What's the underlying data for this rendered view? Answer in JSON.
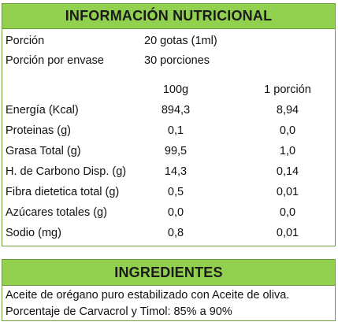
{
  "nutrition": {
    "title": "INFORMACIÓN NUTRICIONAL",
    "serving": {
      "label": "Porción",
      "value": "20 gotas (1ml)"
    },
    "servings_per_container": {
      "label": "Porción por envase",
      "value": "30 porciones"
    },
    "columns": [
      "100g",
      "1 porción"
    ],
    "rows": [
      {
        "label": "Energía (Kcal)",
        "per100": "894,3",
        "perServing": "8,94"
      },
      {
        "label": "Proteinas (g)",
        "per100": "0,1",
        "perServing": "0,0"
      },
      {
        "label": "Grasa Total (g)",
        "per100": "99,5",
        "perServing": "1,0"
      },
      {
        "label": "H. de Carbono Disp. (g)",
        "per100": "14,3",
        "perServing": "0,14"
      },
      {
        "label": "Fibra dietetica total (g)",
        "per100": "0,5",
        "perServing": "0,01"
      },
      {
        "label": "Azúcares totales (g)",
        "per100": "0,0",
        "perServing": "0,0"
      },
      {
        "label": "Sodio (mg)",
        "per100": "0,8",
        "perServing": "0,01"
      }
    ]
  },
  "ingredients": {
    "title": "INGREDIENTES",
    "lines": [
      "Aceite de orégano puro estabilizado con Aceite de oliva.",
      "Porcentaje de Carvacrol y Timol: 85% a 90%"
    ]
  },
  "colors": {
    "header_green": "#92d050",
    "border_green": "#6f9c3a"
  }
}
